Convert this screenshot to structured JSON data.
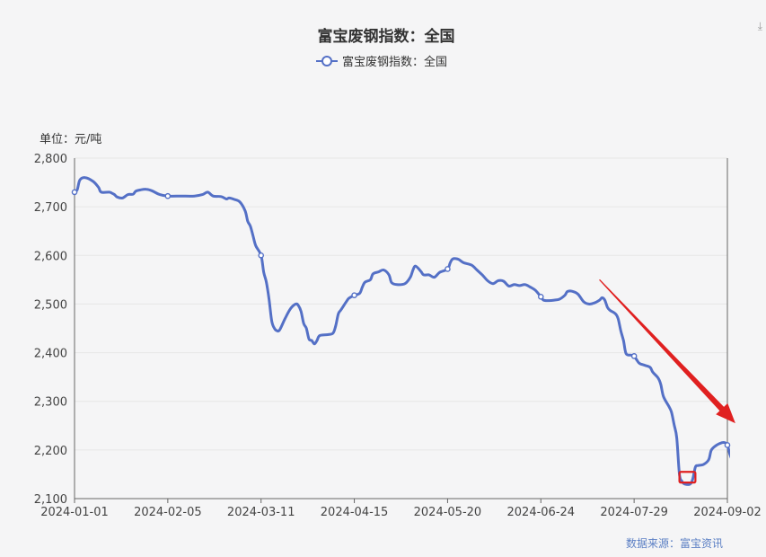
{
  "chart_data": {
    "type": "line",
    "title": "富宝废钢指数：全国",
    "legend": [
      "富宝废钢指数：全国"
    ],
    "legend_position": "top-center",
    "unit_label": "单位：元/吨",
    "source": "数据来源：富宝资讯",
    "grid": true,
    "ylim": [
      2100,
      2800
    ],
    "y_ticks": [
      "2,100",
      "2,200",
      "2,300",
      "2,400",
      "2,500",
      "2,600",
      "2,700",
      "2,800"
    ],
    "y_tick_values": [
      2100,
      2200,
      2300,
      2400,
      2500,
      2600,
      2700,
      2800
    ],
    "xlim": [
      "2024-01-01",
      "2024-09-02"
    ],
    "x_ticks": [
      "2024-01-01",
      "2024-02-05",
      "2024-03-11",
      "2024-04-15",
      "2024-05-20",
      "2024-06-24",
      "2024-07-29",
      "2024-09-02"
    ],
    "series": [
      {
        "name": "富宝废钢指数：全国",
        "color": "#5470c6",
        "points": [
          [
            "2024-01-01",
            2730
          ],
          [
            "2024-01-02",
            2735
          ],
          [
            "2024-01-03",
            2755
          ],
          [
            "2024-01-05",
            2760
          ],
          [
            "2024-01-08",
            2752
          ],
          [
            "2024-01-10",
            2740
          ],
          [
            "2024-01-11",
            2730
          ],
          [
            "2024-01-14",
            2730
          ],
          [
            "2024-01-15",
            2728
          ],
          [
            "2024-01-16",
            2725
          ],
          [
            "2024-01-17",
            2720
          ],
          [
            "2024-01-19",
            2718
          ],
          [
            "2024-01-21",
            2725
          ],
          [
            "2024-01-23",
            2726
          ],
          [
            "2024-01-24",
            2732
          ],
          [
            "2024-01-26",
            2735
          ],
          [
            "2024-01-28",
            2736
          ],
          [
            "2024-01-30",
            2733
          ],
          [
            "2024-02-02",
            2725
          ],
          [
            "2024-02-05",
            2722
          ],
          [
            "2024-02-10",
            2722
          ],
          [
            "2024-02-15",
            2722
          ],
          [
            "2024-02-18",
            2725
          ],
          [
            "2024-02-20",
            2730
          ],
          [
            "2024-02-22",
            2722
          ],
          [
            "2024-02-25",
            2721
          ],
          [
            "2024-02-27",
            2716
          ],
          [
            "2024-02-28",
            2718
          ],
          [
            "2024-03-01",
            2715
          ],
          [
            "2024-03-03",
            2710
          ],
          [
            "2024-03-05",
            2692
          ],
          [
            "2024-03-06",
            2670
          ],
          [
            "2024-03-07",
            2660
          ],
          [
            "2024-03-08",
            2640
          ],
          [
            "2024-03-09",
            2620
          ],
          [
            "2024-03-11",
            2600
          ],
          [
            "2024-03-12",
            2565
          ],
          [
            "2024-03-13",
            2545
          ],
          [
            "2024-03-14",
            2510
          ],
          [
            "2024-03-15",
            2465
          ],
          [
            "2024-03-16",
            2450
          ],
          [
            "2024-03-17",
            2445
          ],
          [
            "2024-03-18",
            2447
          ],
          [
            "2024-03-20",
            2470
          ],
          [
            "2024-03-22",
            2490
          ],
          [
            "2024-03-24",
            2500
          ],
          [
            "2024-03-25",
            2497
          ],
          [
            "2024-03-26",
            2485
          ],
          [
            "2024-03-27",
            2460
          ],
          [
            "2024-03-28",
            2450
          ],
          [
            "2024-03-29",
            2428
          ],
          [
            "2024-03-30",
            2425
          ],
          [
            "2024-03-31",
            2418
          ],
          [
            "2024-04-01",
            2425
          ],
          [
            "2024-04-02",
            2435
          ],
          [
            "2024-04-05",
            2437
          ],
          [
            "2024-04-07",
            2440
          ],
          [
            "2024-04-08",
            2455
          ],
          [
            "2024-04-09",
            2480
          ],
          [
            "2024-04-10",
            2488
          ],
          [
            "2024-04-12",
            2505
          ],
          [
            "2024-04-13",
            2512
          ],
          [
            "2024-04-15",
            2518
          ],
          [
            "2024-04-17",
            2522
          ],
          [
            "2024-04-18",
            2535
          ],
          [
            "2024-04-19",
            2545
          ],
          [
            "2024-04-21",
            2550
          ],
          [
            "2024-04-22",
            2562
          ],
          [
            "2024-04-24",
            2566
          ],
          [
            "2024-04-26",
            2570
          ],
          [
            "2024-04-28",
            2560
          ],
          [
            "2024-04-29",
            2544
          ],
          [
            "2024-05-01",
            2540
          ],
          [
            "2024-05-04",
            2542
          ],
          [
            "2024-05-06",
            2555
          ],
          [
            "2024-05-07",
            2570
          ],
          [
            "2024-05-08",
            2578
          ],
          [
            "2024-05-10",
            2567
          ],
          [
            "2024-05-11",
            2560
          ],
          [
            "2024-05-13",
            2560
          ],
          [
            "2024-05-15",
            2555
          ],
          [
            "2024-05-17",
            2565
          ],
          [
            "2024-05-20",
            2572
          ],
          [
            "2024-05-21",
            2585
          ],
          [
            "2024-05-22",
            2593
          ],
          [
            "2024-05-24",
            2592
          ],
          [
            "2024-05-26",
            2585
          ],
          [
            "2024-05-29",
            2580
          ],
          [
            "2024-05-31",
            2570
          ],
          [
            "2024-06-02",
            2560
          ],
          [
            "2024-06-04",
            2548
          ],
          [
            "2024-06-06",
            2542
          ],
          [
            "2024-06-08",
            2548
          ],
          [
            "2024-06-10",
            2547
          ],
          [
            "2024-06-12",
            2537
          ],
          [
            "2024-06-14",
            2540
          ],
          [
            "2024-06-16",
            2538
          ],
          [
            "2024-06-18",
            2540
          ],
          [
            "2024-06-20",
            2535
          ],
          [
            "2024-06-22",
            2528
          ],
          [
            "2024-06-24",
            2515
          ],
          [
            "2024-06-25",
            2508
          ],
          [
            "2024-06-27",
            2507
          ],
          [
            "2024-06-29",
            2508
          ],
          [
            "2024-07-01",
            2510
          ],
          [
            "2024-07-03",
            2518
          ],
          [
            "2024-07-04",
            2526
          ],
          [
            "2024-07-06",
            2526
          ],
          [
            "2024-07-08",
            2520
          ],
          [
            "2024-07-10",
            2505
          ],
          [
            "2024-07-12",
            2500
          ],
          [
            "2024-07-14",
            2502
          ],
          [
            "2024-07-16",
            2508
          ],
          [
            "2024-07-17",
            2513
          ],
          [
            "2024-07-18",
            2508
          ],
          [
            "2024-07-19",
            2493
          ],
          [
            "2024-07-20",
            2487
          ],
          [
            "2024-07-22",
            2480
          ],
          [
            "2024-07-23",
            2470
          ],
          [
            "2024-07-24",
            2445
          ],
          [
            "2024-07-25",
            2425
          ],
          [
            "2024-07-26",
            2398
          ],
          [
            "2024-07-28",
            2395
          ],
          [
            "2024-07-29",
            2393
          ],
          [
            "2024-07-30",
            2385
          ],
          [
            "2024-07-31",
            2378
          ],
          [
            "2024-08-02",
            2374
          ],
          [
            "2024-08-04",
            2370
          ],
          [
            "2024-08-05",
            2360
          ],
          [
            "2024-08-07",
            2348
          ],
          [
            "2024-08-08",
            2335
          ],
          [
            "2024-08-09",
            2310
          ],
          [
            "2024-08-11",
            2290
          ],
          [
            "2024-08-12",
            2278
          ],
          [
            "2024-08-13",
            2252
          ],
          [
            "2024-08-14",
            2225
          ],
          [
            "2024-08-15",
            2150
          ],
          [
            "2024-08-16",
            2135
          ],
          [
            "2024-08-17",
            2130
          ],
          [
            "2024-08-19",
            2130
          ],
          [
            "2024-08-20",
            2140
          ],
          [
            "2024-08-21",
            2165
          ],
          [
            "2024-08-22",
            2168
          ],
          [
            "2024-08-24",
            2170
          ],
          [
            "2024-08-26",
            2180
          ],
          [
            "2024-08-27",
            2200
          ],
          [
            "2024-08-29",
            2210
          ],
          [
            "2024-08-31",
            2215
          ],
          [
            "2024-09-01",
            2215
          ],
          [
            "2024-09-02",
            2210
          ],
          [
            "2024-09-03",
            2190
          ],
          [
            "2024-09-04",
            2178
          ],
          [
            "2024-09-05",
            2175
          ]
        ],
        "markers": [
          "2024-01-01",
          "2024-02-05",
          "2024-03-11",
          "2024-04-15",
          "2024-05-20",
          "2024-06-24",
          "2024-07-29",
          "2024-09-02"
        ]
      }
    ],
    "annotations": [
      {
        "type": "arrow",
        "color": "#e02020",
        "from": [
          "2024-07-16",
          2550
        ],
        "to": [
          "2024-09-05",
          2255
        ]
      },
      {
        "type": "box",
        "color": "#e02020",
        "from": [
          "2024-08-15",
          2155
        ],
        "to": [
          "2024-08-21",
          2133
        ]
      }
    ]
  }
}
